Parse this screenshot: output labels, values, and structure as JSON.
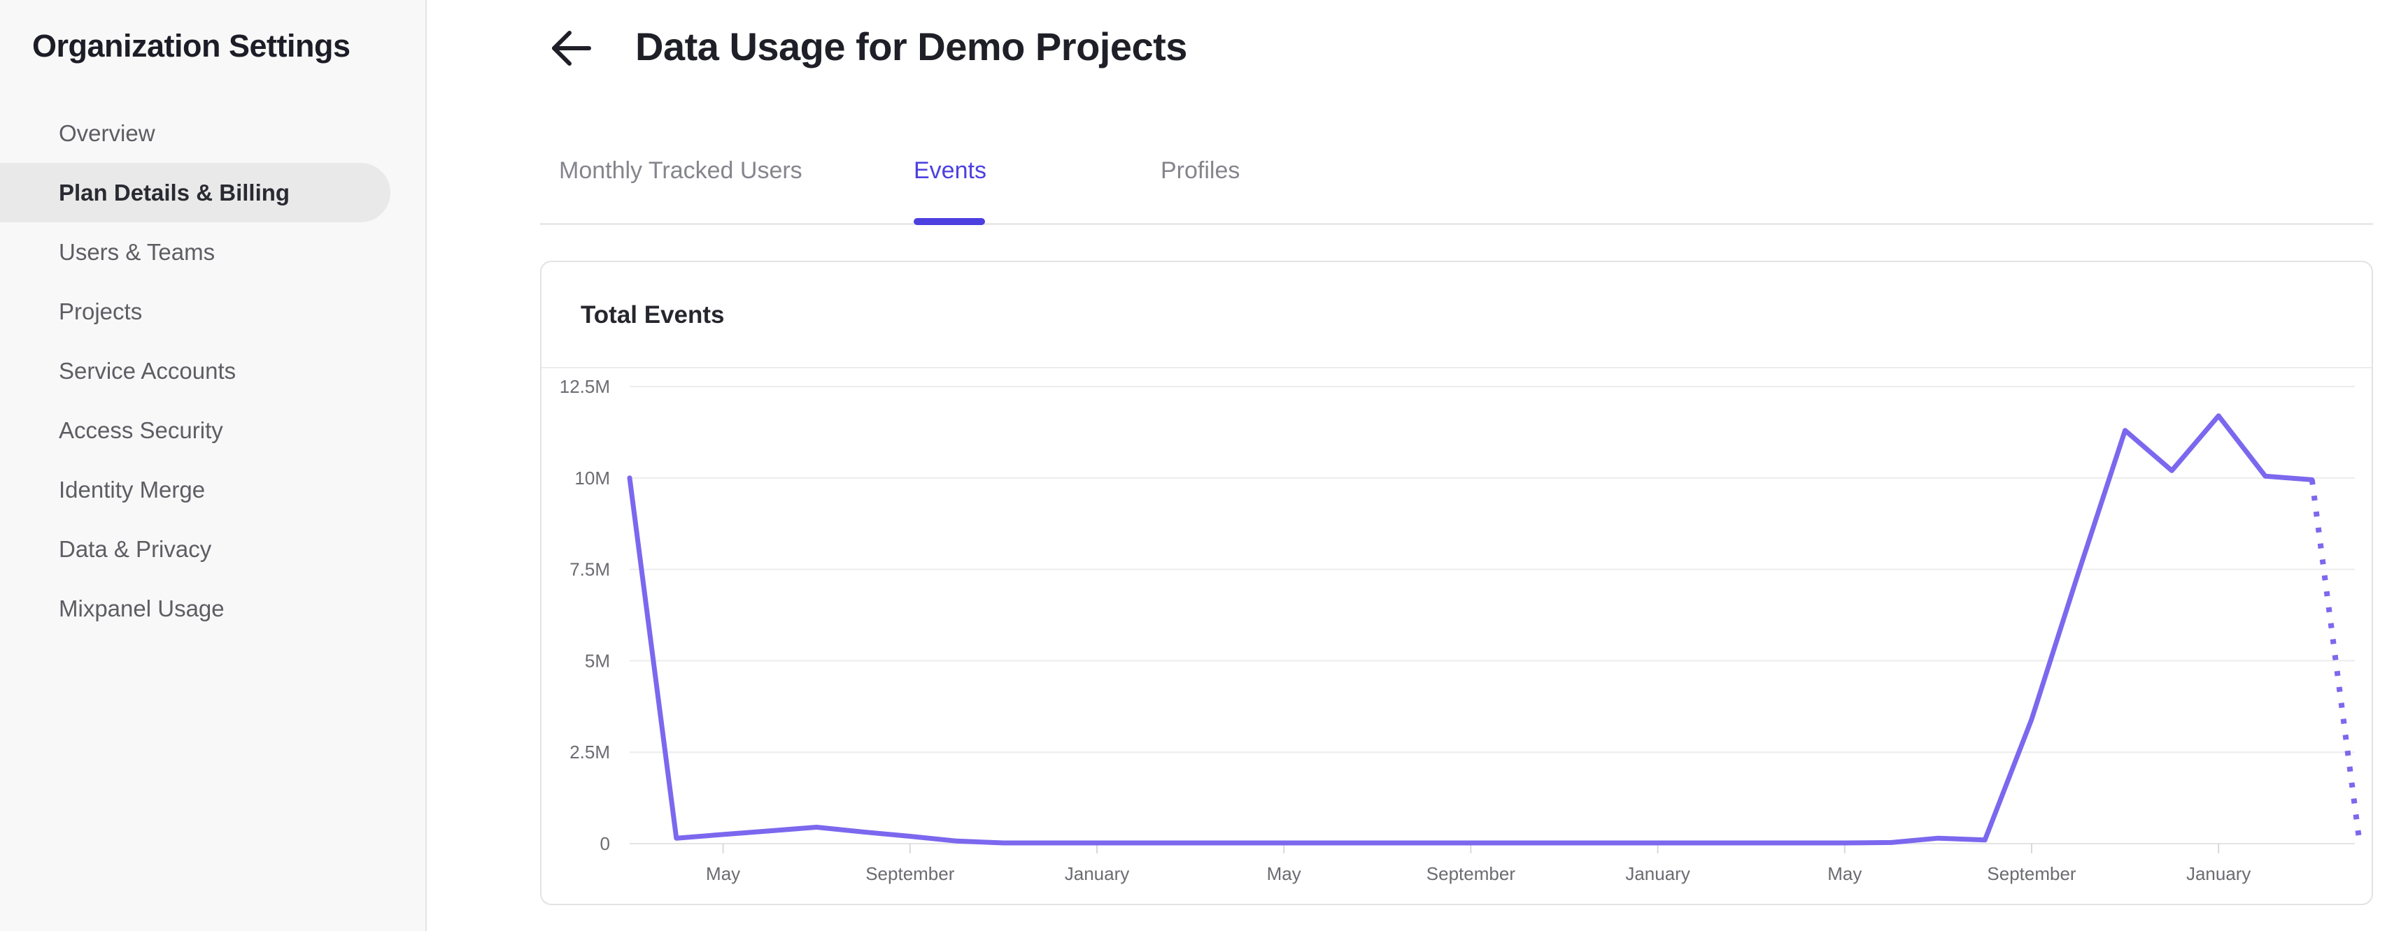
{
  "sidebar": {
    "title": "Organization Settings",
    "items": [
      {
        "label": "Overview",
        "active": false
      },
      {
        "label": "Plan Details & Billing",
        "active": true
      },
      {
        "label": "Users & Teams",
        "active": false
      },
      {
        "label": "Projects",
        "active": false
      },
      {
        "label": "Service Accounts",
        "active": false
      },
      {
        "label": "Access Security",
        "active": false
      },
      {
        "label": "Identity Merge",
        "active": false
      },
      {
        "label": "Data & Privacy",
        "active": false
      },
      {
        "label": "Mixpanel Usage",
        "active": false
      }
    ]
  },
  "header": {
    "back_icon": "arrow-left-icon",
    "title": "Data Usage for Demo Projects"
  },
  "tabs": [
    {
      "label": "Monthly Tracked Users",
      "active": false
    },
    {
      "label": "Events",
      "active": true
    },
    {
      "label": "Profiles",
      "active": false
    }
  ],
  "card": {
    "title": "Total Events"
  },
  "colors": {
    "accent_purple": "#4c40df",
    "chart_line": "#7b68ee",
    "sidebar_bg": "#f8f8f8",
    "selected_item_bg": "#e9e9e9",
    "text_dark": "#1f1f28",
    "text_gray": "#6b6b72",
    "gridline": "#ececec"
  },
  "chart_data": {
    "type": "line",
    "title": "Total Events",
    "ylabel": "",
    "xlabel": "",
    "unit": "events, millions",
    "ylim_millions": [
      0,
      12.5
    ],
    "grid": "horizontal",
    "legend": "none",
    "y_ticks": [
      {
        "value_millions": 12.5,
        "label": "12.5M"
      },
      {
        "value_millions": 10,
        "label": "10M"
      },
      {
        "value_millions": 7.5,
        "label": "7.5M"
      },
      {
        "value_millions": 5,
        "label": "5M"
      },
      {
        "value_millions": 2.5,
        "label": "2.5M"
      },
      {
        "value_millions": 0,
        "label": "0"
      }
    ],
    "x_tick_labels": [
      "May",
      "September",
      "January",
      "May",
      "September",
      "January",
      "May",
      "September",
      "January"
    ],
    "x_tick_indices": [
      2,
      6,
      10,
      14,
      18,
      22,
      26,
      30,
      34
    ],
    "series": [
      {
        "name": "Total Events",
        "values_millions": [
          10,
          0.15,
          0.25,
          0.35,
          0.45,
          0.32,
          0.2,
          0.07,
          0.02,
          0.02,
          0.02,
          0.02,
          0.02,
          0.02,
          0.02,
          0.02,
          0.02,
          0.02,
          0.02,
          0.02,
          0.02,
          0.02,
          0.02,
          0.02,
          0.02,
          0.02,
          0.02,
          0.03,
          0.15,
          0.1,
          3.4,
          7.4,
          11.3,
          10.2,
          11.7,
          10.05,
          9.95,
          0.2
        ]
      }
    ],
    "solid_point_count": 37,
    "last_segment_style": "dotted-projection"
  }
}
